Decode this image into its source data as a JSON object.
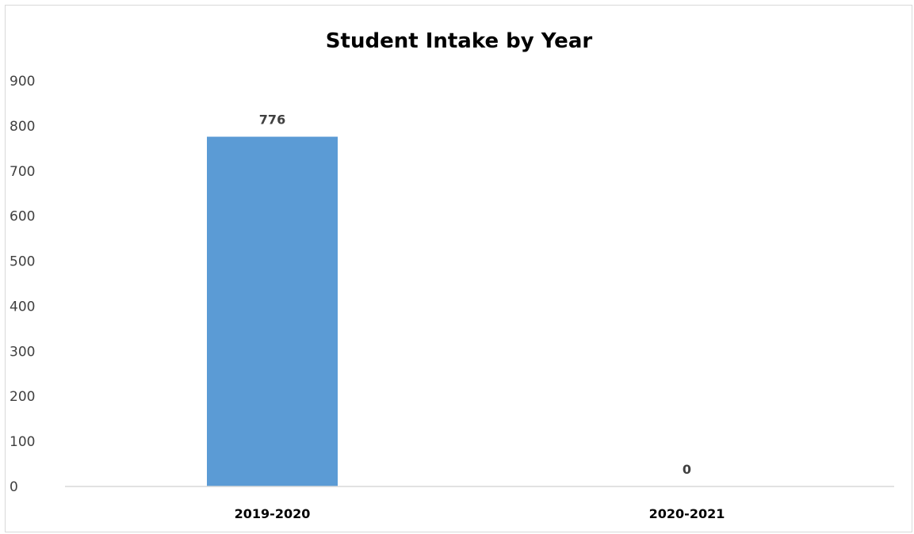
{
  "chart_data": {
    "type": "bar",
    "title": "Student Intake by Year",
    "xlabel": "",
    "ylabel": "",
    "categories": [
      "2019-2020",
      "2020-2021"
    ],
    "values": [
      776,
      0
    ],
    "data_labels": [
      "776",
      "0"
    ],
    "ylim": [
      0,
      900
    ],
    "yticks": [
      0,
      100,
      200,
      300,
      400,
      500,
      600,
      700,
      800,
      900
    ],
    "ytick_labels": [
      "0",
      "100",
      "200",
      "300",
      "400",
      "500",
      "600",
      "700",
      "800",
      "900"
    ],
    "grid": false,
    "legend": "none",
    "bar_color": "#5b9bd5",
    "axis_color": "#d9d9d9"
  }
}
